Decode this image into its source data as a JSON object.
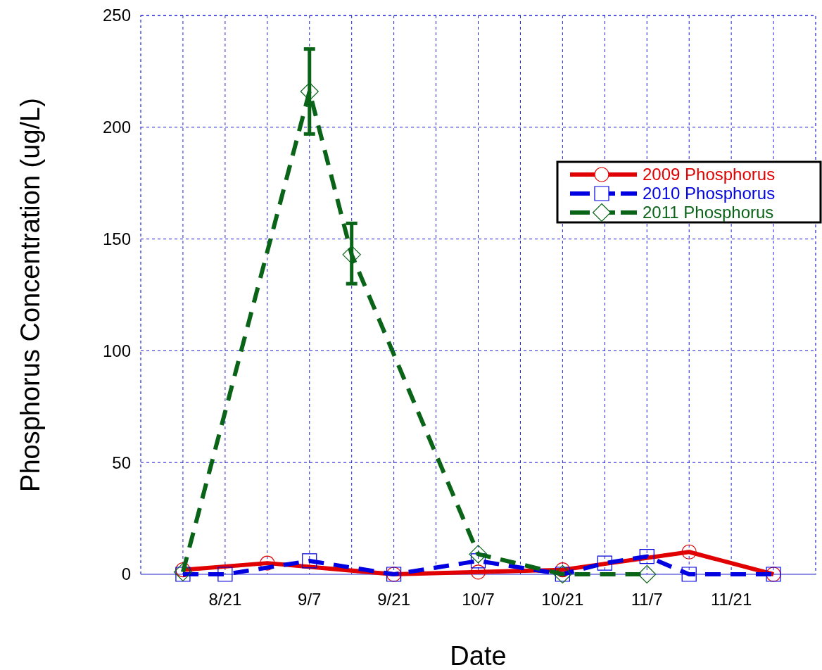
{
  "chart_data": {
    "type": "line",
    "xlabel": "Date",
    "ylabel": "Phosphorus Concentration (ug/L)",
    "categories": [
      null,
      "8/21",
      null,
      "9/7",
      null,
      "9/21",
      null,
      "10/7",
      null,
      "10/21",
      null,
      "11/7",
      null,
      "11/21",
      null
    ],
    "ylim": [
      0,
      250
    ],
    "yticks": [
      0,
      50,
      100,
      150,
      200,
      250
    ],
    "grid": true,
    "legend": "right",
    "series": [
      {
        "name": "2009 Phosphorus",
        "color": "#e00000",
        "marker": "circle",
        "line_style": "solid",
        "values": [
          2,
          null,
          5,
          null,
          null,
          0,
          null,
          1,
          null,
          2,
          null,
          null,
          10,
          null,
          0
        ]
      },
      {
        "name": "2010 Phosphorus",
        "color": "#0000e0",
        "marker": "square",
        "line_style": "dashed",
        "values": [
          0,
          0,
          null,
          6,
          null,
          0,
          null,
          6,
          null,
          0,
          5,
          8,
          0,
          null,
          0
        ]
      },
      {
        "name": "2011 Phosphorus",
        "color": "#0a6418",
        "marker": "diamond",
        "line_style": "dashed",
        "values": [
          1,
          null,
          null,
          216,
          143,
          null,
          null,
          9,
          null,
          0,
          null,
          0,
          null,
          null,
          null
        ],
        "errors": [
          null,
          null,
          null,
          [
            197,
            235
          ],
          [
            130,
            157
          ],
          null,
          null,
          null,
          null,
          null,
          null,
          null,
          null,
          null,
          null
        ]
      }
    ]
  }
}
